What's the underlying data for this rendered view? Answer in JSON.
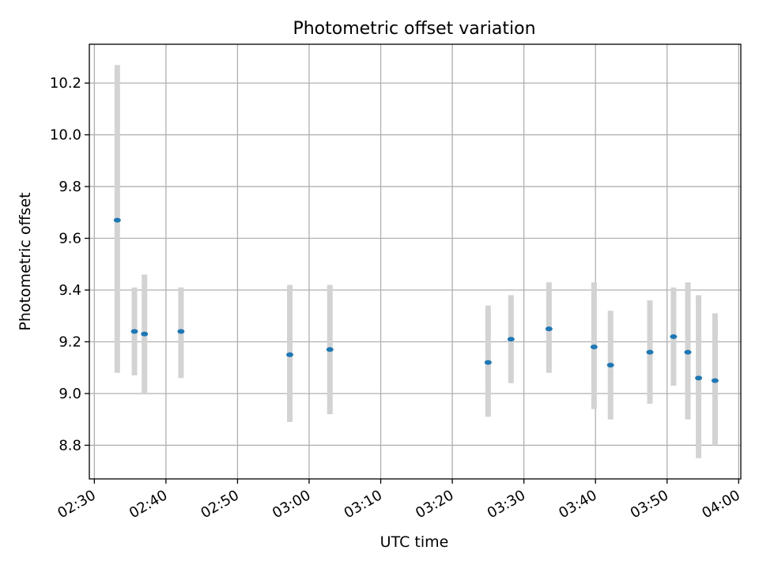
{
  "chart_data": {
    "type": "scatter",
    "title": "Photometric offset variation",
    "xlabel": "UTC time",
    "ylabel": "Photometric offset",
    "grid": true,
    "x_unit": "minutes after 02:30 UTC",
    "xlim": [
      -0.7,
      90.3
    ],
    "ylim": [
      8.67,
      10.35
    ],
    "x_ticks": [
      {
        "value": 0,
        "label": "02:30"
      },
      {
        "value": 10,
        "label": "02:40"
      },
      {
        "value": 20,
        "label": "02:50"
      },
      {
        "value": 30,
        "label": "03:00"
      },
      {
        "value": 40,
        "label": "03:10"
      },
      {
        "value": 50,
        "label": "03:20"
      },
      {
        "value": 60,
        "label": "03:30"
      },
      {
        "value": 70,
        "label": "03:40"
      },
      {
        "value": 80,
        "label": "03:50"
      },
      {
        "value": 90,
        "label": "04:00"
      }
    ],
    "y_ticks": [
      {
        "value": 8.8,
        "label": "8.8"
      },
      {
        "value": 9.0,
        "label": "9.0"
      },
      {
        "value": 9.2,
        "label": "9.2"
      },
      {
        "value": 9.4,
        "label": "9.4"
      },
      {
        "value": 9.6,
        "label": "9.6"
      },
      {
        "value": 9.8,
        "label": "9.8"
      },
      {
        "value": 10.0,
        "label": "10.0"
      },
      {
        "value": 10.2,
        "label": "10.2"
      }
    ],
    "series": [
      {
        "name": "photometric offset",
        "color": "#1f77b4",
        "errorbar_color": "#d3d3d3",
        "points": [
          {
            "x": 3.2,
            "y": 9.67,
            "lo": 9.08,
            "hi": 10.27
          },
          {
            "x": 5.6,
            "y": 9.24,
            "lo": 9.07,
            "hi": 9.41
          },
          {
            "x": 7.0,
            "y": 9.23,
            "lo": 9.0,
            "hi": 9.46
          },
          {
            "x": 12.1,
            "y": 9.24,
            "lo": 9.06,
            "hi": 9.41
          },
          {
            "x": 27.3,
            "y": 9.15,
            "lo": 8.89,
            "hi": 9.42
          },
          {
            "x": 32.9,
            "y": 9.17,
            "lo": 8.92,
            "hi": 9.42
          },
          {
            "x": 55.0,
            "y": 9.12,
            "lo": 8.91,
            "hi": 9.34
          },
          {
            "x": 58.2,
            "y": 9.21,
            "lo": 9.04,
            "hi": 9.38
          },
          {
            "x": 63.5,
            "y": 9.25,
            "lo": 9.08,
            "hi": 9.43
          },
          {
            "x": 69.8,
            "y": 9.18,
            "lo": 8.94,
            "hi": 9.43
          },
          {
            "x": 72.1,
            "y": 9.11,
            "lo": 8.9,
            "hi": 9.32
          },
          {
            "x": 77.6,
            "y": 9.16,
            "lo": 8.96,
            "hi": 9.36
          },
          {
            "x": 80.9,
            "y": 9.22,
            "lo": 9.03,
            "hi": 9.41
          },
          {
            "x": 82.9,
            "y": 9.16,
            "lo": 8.9,
            "hi": 9.43
          },
          {
            "x": 84.4,
            "y": 9.06,
            "lo": 8.75,
            "hi": 9.38
          },
          {
            "x": 86.7,
            "y": 9.05,
            "lo": 8.8,
            "hi": 9.31
          }
        ]
      }
    ]
  }
}
